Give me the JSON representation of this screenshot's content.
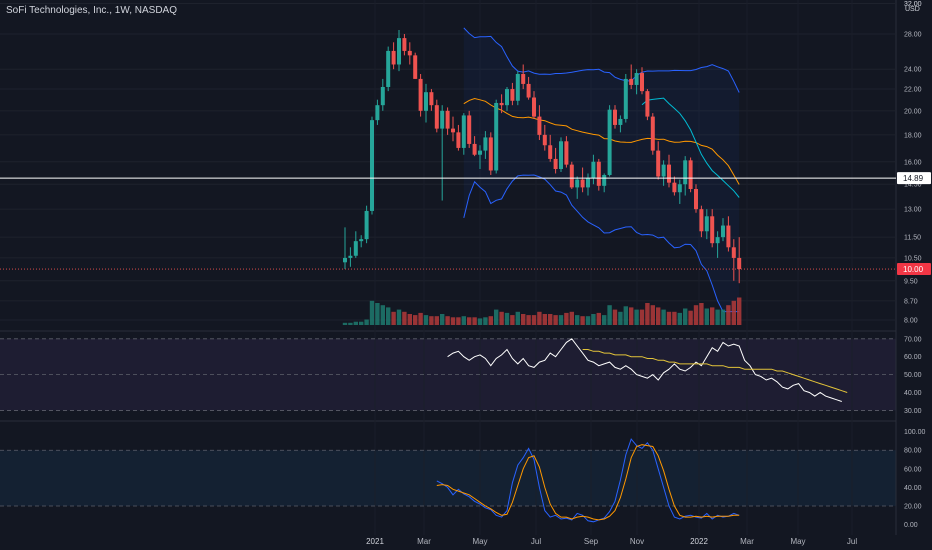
{
  "header": {
    "title": "SoFi Technologies, Inc., 1W, NASDAQ",
    "currency": "USD"
  },
  "colors": {
    "up": "#26a69a",
    "down": "#ef5350",
    "upVol": "#1f7a6f",
    "downVol": "#b33a3a",
    "bb": "#2962ff",
    "bbFill": "rgba(41,98,255,0.06)",
    "basis": "#ff9800",
    "teal": "#00bcd4",
    "rsi": "#ffffff",
    "rsiMA": "#e2c33a",
    "stochK": "#2962ff",
    "stochD": "#ff9800",
    "hline": "#ffffff",
    "redline": "#ef5350",
    "lastBadge": "#f23645"
  },
  "chart_data": [
    {
      "type": "candlestick",
      "name": "SOFI 1W price",
      "price_axis_ticks": [
        "8.00",
        "8.70",
        "9.50",
        "10.50",
        "11.50",
        "13.00",
        "14.50",
        "16.00",
        "18.00",
        "20.00",
        "22.00",
        "24.00",
        "28.00",
        "32.00"
      ],
      "horizontal_line": {
        "value": 14.89,
        "label": "14.89"
      },
      "last_price": {
        "value": 10.0,
        "label": "10.00"
      },
      "time_axis": [
        "2021",
        "Mar",
        "May",
        "Jul",
        "Sep",
        "Nov",
        "2022",
        "Mar",
        "May",
        "Jul"
      ],
      "ohlc": [
        [
          10.3,
          12.0,
          10.0,
          10.5
        ],
        [
          10.5,
          11.0,
          10.1,
          10.6
        ],
        [
          10.6,
          11.8,
          10.5,
          11.3
        ],
        [
          11.3,
          11.6,
          11.0,
          11.4
        ],
        [
          11.4,
          13.2,
          11.2,
          12.9
        ],
        [
          12.9,
          19.5,
          12.7,
          19.2
        ],
        [
          19.2,
          21.0,
          18.8,
          20.5
        ],
        [
          20.5,
          23.0,
          20.0,
          22.2
        ],
        [
          22.2,
          26.5,
          21.8,
          26.0
        ],
        [
          26.0,
          27.0,
          24.0,
          24.5
        ],
        [
          24.5,
          28.5,
          23.8,
          27.5
        ],
        [
          27.5,
          28.0,
          25.5,
          26.0
        ],
        [
          26.0,
          27.0,
          24.5,
          25.5
        ],
        [
          25.5,
          25.8,
          23.0,
          23.0
        ],
        [
          23.0,
          23.5,
          19.5,
          20.0
        ],
        [
          20.0,
          22.5,
          19.0,
          21.7
        ],
        [
          21.7,
          22.0,
          20.0,
          20.5
        ],
        [
          20.5,
          21.0,
          18.2,
          18.5
        ],
        [
          18.5,
          20.5,
          13.5,
          20.0
        ],
        [
          20.0,
          20.3,
          18.0,
          18.5
        ],
        [
          18.5,
          19.5,
          17.5,
          18.2
        ],
        [
          18.2,
          18.8,
          16.8,
          17.0
        ],
        [
          17.0,
          19.8,
          16.5,
          19.6
        ],
        [
          19.6,
          20.0,
          17.0,
          17.3
        ],
        [
          17.3,
          17.9,
          16.4,
          16.5
        ],
        [
          16.5,
          17.2,
          15.5,
          16.8
        ],
        [
          16.8,
          18.3,
          16.2,
          17.8
        ],
        [
          17.8,
          18.2,
          15.1,
          15.4
        ],
        [
          15.4,
          21.0,
          15.2,
          20.7
        ],
        [
          20.7,
          21.5,
          19.8,
          20.5
        ],
        [
          20.5,
          22.2,
          20.0,
          22.0
        ],
        [
          22.0,
          22.6,
          20.5,
          20.9
        ],
        [
          20.9,
          23.8,
          20.5,
          23.5
        ],
        [
          23.5,
          24.5,
          22.0,
          22.5
        ],
        [
          22.5,
          23.2,
          21.0,
          21.2
        ],
        [
          21.2,
          21.8,
          19.3,
          19.5
        ],
        [
          19.5,
          20.5,
          17.6,
          18.0
        ],
        [
          18.0,
          18.8,
          16.8,
          17.2
        ],
        [
          17.2,
          18.0,
          16.0,
          16.2
        ],
        [
          16.2,
          17.0,
          15.2,
          15.5
        ],
        [
          15.5,
          17.8,
          15.3,
          17.5
        ],
        [
          17.5,
          17.9,
          15.6,
          15.8
        ],
        [
          15.8,
          16.0,
          14.2,
          14.3
        ],
        [
          14.3,
          15.0,
          13.6,
          14.8
        ],
        [
          14.8,
          15.6,
          14.0,
          14.3
        ],
        [
          14.3,
          15.2,
          13.8,
          14.9
        ],
        [
          14.9,
          16.5,
          14.5,
          16.0
        ],
        [
          16.0,
          16.2,
          14.1,
          14.4
        ],
        [
          14.4,
          15.2,
          14.0,
          15.1
        ],
        [
          15.1,
          20.5,
          15.0,
          20.1
        ],
        [
          20.1,
          20.5,
          18.5,
          18.8
        ],
        [
          18.8,
          19.6,
          18.2,
          19.3
        ],
        [
          19.3,
          23.5,
          19.0,
          23.0
        ],
        [
          23.0,
          24.5,
          22.0,
          22.4
        ],
        [
          22.4,
          24.0,
          21.5,
          23.6
        ],
        [
          23.6,
          24.2,
          21.5,
          21.8
        ],
        [
          21.8,
          22.0,
          19.2,
          19.5
        ],
        [
          19.5,
          19.8,
          16.5,
          16.8
        ],
        [
          16.8,
          17.5,
          14.8,
          15.0
        ],
        [
          15.0,
          16.1,
          14.4,
          15.8
        ],
        [
          15.8,
          16.5,
          14.3,
          14.6
        ],
        [
          14.6,
          15.0,
          13.8,
          14.0
        ],
        [
          14.0,
          14.8,
          13.3,
          14.5
        ],
        [
          14.5,
          16.4,
          13.8,
          16.1
        ],
        [
          16.1,
          16.3,
          14.0,
          14.2
        ],
        [
          14.2,
          14.5,
          12.8,
          13.0
        ],
        [
          13.0,
          13.2,
          11.5,
          11.8
        ],
        [
          11.8,
          13.0,
          11.4,
          12.6
        ],
        [
          12.6,
          13.0,
          11.0,
          11.2
        ],
        [
          11.2,
          11.8,
          10.5,
          11.5
        ],
        [
          11.5,
          12.5,
          11.3,
          12.1
        ],
        [
          12.1,
          12.6,
          10.8,
          11.0
        ],
        [
          11.0,
          11.4,
          9.5,
          10.5
        ],
        [
          10.5,
          11.5,
          9.4,
          10.0
        ]
      ],
      "volume": [
        2,
        2,
        3,
        3,
        5,
        22,
        20,
        18,
        16,
        12,
        14,
        12,
        10,
        9,
        11,
        9,
        8,
        8,
        10,
        8,
        7,
        7,
        8,
        7,
        7,
        6,
        7,
        8,
        14,
        12,
        11,
        9,
        12,
        10,
        9,
        9,
        12,
        10,
        10,
        9,
        9,
        11,
        12,
        9,
        8,
        8,
        10,
        11,
        9,
        18,
        14,
        12,
        17,
        16,
        14,
        14,
        20,
        18,
        16,
        14,
        12,
        12,
        11,
        15,
        13,
        18,
        20,
        15,
        16,
        14,
        14,
        18,
        22,
        25
      ]
    },
    {
      "type": "line",
      "name": "RSI panel",
      "axis_ticks": [
        "70.00",
        "60.00",
        "50.00",
        "40.00",
        "30.00"
      ],
      "ylim": [
        28,
        71
      ],
      "series": [
        {
          "name": "RSI",
          "values": [
            60,
            62,
            63,
            60,
            58,
            60,
            61,
            59,
            55,
            59,
            61,
            64,
            59,
            56,
            59,
            55,
            54,
            57,
            58,
            62,
            60,
            64,
            68,
            70,
            66,
            62,
            58,
            57,
            55,
            56,
            57,
            54,
            53,
            55,
            53,
            50,
            49,
            48,
            50,
            47,
            51,
            53,
            56,
            53,
            52,
            54,
            57,
            55,
            60,
            65,
            63,
            68,
            66,
            67,
            66,
            58,
            55,
            50,
            49,
            47,
            48,
            46,
            43,
            42,
            44,
            45,
            41,
            40,
            38,
            40,
            38,
            37,
            36,
            35
          ],
          "start_index": 19
        },
        {
          "name": "RSI MA",
          "values": [
            64,
            64,
            63,
            63,
            62,
            62,
            61,
            61,
            61,
            60,
            60,
            60,
            59,
            59,
            58,
            58,
            57,
            57,
            56,
            56,
            56,
            56,
            56,
            56,
            55,
            55,
            55,
            54,
            54,
            54,
            53,
            53,
            53,
            53,
            53,
            53,
            52,
            52,
            51,
            50,
            49,
            48,
            47,
            46,
            45,
            44,
            43,
            42,
            41,
            40
          ],
          "start_index": 44
        }
      ]
    },
    {
      "type": "line",
      "name": "Stochastic panel",
      "axis_ticks": [
        "100.00",
        "80.00",
        "60.00",
        "40.00",
        "20.00",
        "0.00"
      ],
      "ylim": [
        -8,
        105
      ],
      "series": [
        {
          "name": "%K",
          "values": [
            47,
            44,
            40,
            32,
            38,
            33,
            30,
            25,
            22,
            18,
            16,
            10,
            8,
            15,
            45,
            64,
            72,
            82,
            70,
            40,
            15,
            8,
            10,
            6,
            7,
            5,
            12,
            10,
            4,
            3,
            5,
            7,
            14,
            25,
            48,
            75,
            92,
            85,
            82,
            88,
            80,
            60,
            40,
            20,
            8,
            6,
            9,
            10,
            8,
            7,
            12,
            6,
            10,
            8,
            9,
            12,
            10
          ],
          "start_index": 17
        },
        {
          "name": "%D",
          "values": [
            42,
            43,
            42,
            38,
            36,
            34,
            32,
            28,
            24,
            20,
            17,
            13,
            10,
            11,
            24,
            42,
            60,
            72,
            74,
            62,
            40,
            22,
            12,
            8,
            8,
            6,
            8,
            9,
            8,
            6,
            5,
            6,
            9,
            15,
            29,
            49,
            72,
            84,
            86,
            85,
            84,
            74,
            58,
            38,
            20,
            10,
            8,
            8,
            9,
            8,
            9,
            8,
            9,
            9,
            9,
            10,
            10
          ],
          "start_index": 17
        }
      ]
    }
  ]
}
